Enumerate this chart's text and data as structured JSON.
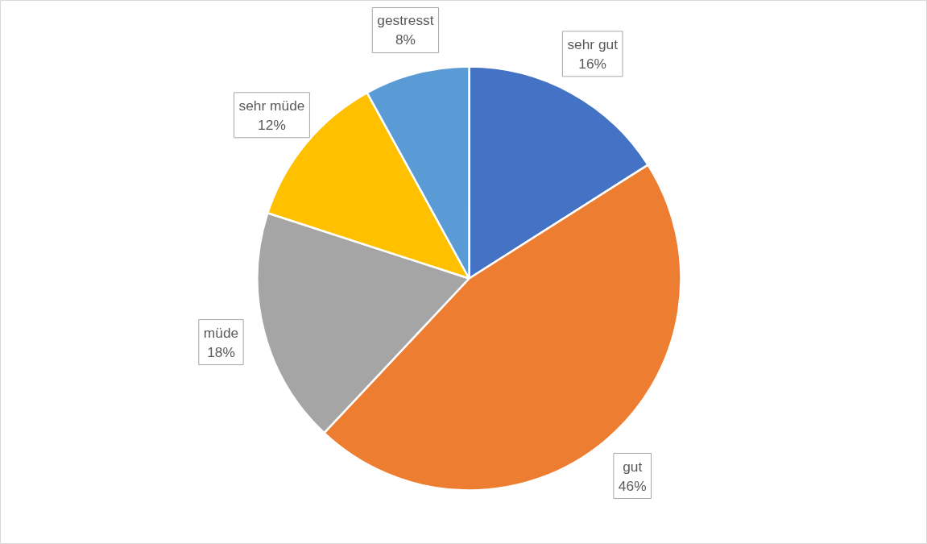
{
  "chart_data": {
    "type": "pie",
    "categories": [
      "sehr gut",
      "gut",
      "müde",
      "sehr müde",
      "gestresst"
    ],
    "values": [
      16,
      46,
      18,
      12,
      8
    ],
    "colors": [
      "#4472c4",
      "#ed7d31",
      "#a5a5a5",
      "#ffc000",
      "#5b9bd5"
    ],
    "value_labels": [
      "16%",
      "46%",
      "18%",
      "12%",
      "8%"
    ]
  }
}
